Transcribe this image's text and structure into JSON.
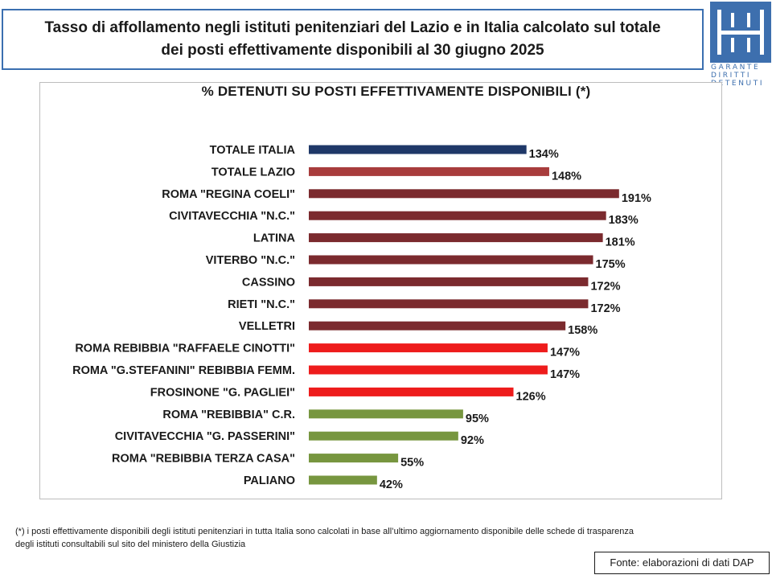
{
  "header": {
    "title_line1": "Tasso di affollamento negli istituti penitenziari del Lazio e in Italia calcolato sul totale",
    "title_line2": "dei posti effettivamente disponibili al 30 giugno 2025"
  },
  "logo": {
    "icon": "garante-logo-icon",
    "lines": [
      "GARANTE",
      "DIRITTI",
      "DETENUTI"
    ],
    "color": "#3d6fae"
  },
  "chart_data": {
    "type": "bar",
    "orientation": "horizontal",
    "title": "% DETENUTI SU POSTI EFFETTIVAMENTE DISPONIBILI (*)",
    "xlabel": "",
    "ylabel": "",
    "xlim": [
      0,
      200
    ],
    "grid": false,
    "legend": "none",
    "value_suffix": "%",
    "categories": [
      "TOTALE ITALIA",
      "TOTALE LAZIO",
      "ROMA \"REGINA COELI\"",
      "CIVITAVECCHIA \"N.C.\"",
      "LATINA",
      "VITERBO \"N.C.\"",
      "CASSINO",
      "RIETI \"N.C.\"",
      "VELLETRI",
      "ROMA REBIBBIA \"RAFFAELE CINOTTI\"",
      "ROMA \"G.STEFANINI\" REBIBBIA FEMM.",
      "FROSINONE \"G. PAGLIEI\"",
      "ROMA \"REBIBBIA\" C.R.",
      "CIVITAVECCHIA \"G. PASSERINI\"",
      "ROMA \"REBIBBIA TERZA CASA\"",
      "PALIANO"
    ],
    "values": [
      134,
      148,
      191,
      183,
      181,
      175,
      172,
      172,
      158,
      147,
      147,
      126,
      95,
      92,
      55,
      42
    ],
    "colors": [
      "#1f3868",
      "#a83c3c",
      "#7b2a2e",
      "#7b2a2e",
      "#7b2a2e",
      "#7b2a2e",
      "#7b2a2e",
      "#7b2a2e",
      "#7b2a2e",
      "#ee1c1c",
      "#ee1c1c",
      "#ee1c1c",
      "#77963f",
      "#77963f",
      "#77963f",
      "#77963f"
    ]
  },
  "footnote": {
    "line1": "(*) i posti effettivamente disponibili  degli istituti penitenziari in tutta Italia sono calcolati in base all’ultimo aggiornamento disponibile  delle schede di trasparenza",
    "line2": "degli istituti consultabili sul sito del ministero della Giustizia"
  },
  "source": {
    "label": "Fonte: elaborazioni di dati DAP"
  }
}
